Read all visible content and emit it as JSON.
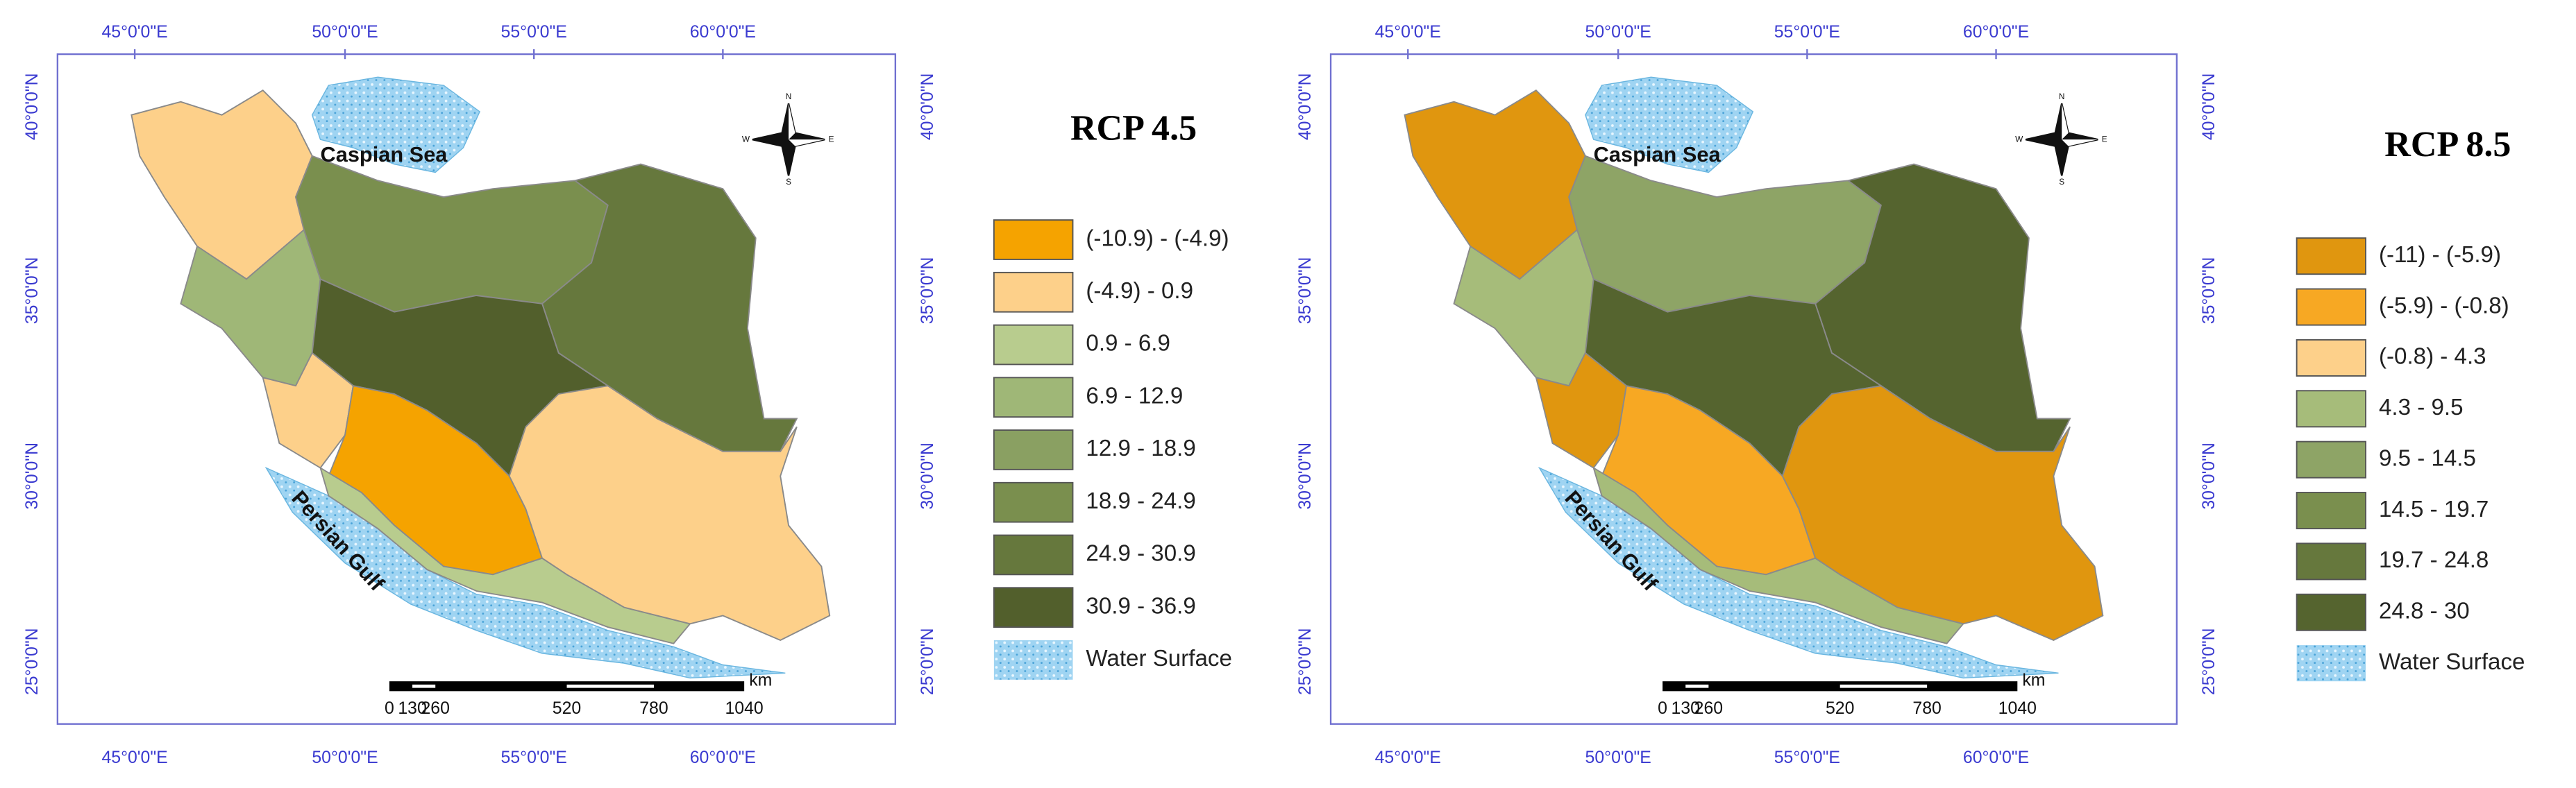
{
  "panels": [
    {
      "title": "RCP 4.5",
      "legend": [
        "(-10.9) - (-4.9)",
        "(-4.9) - 0.9",
        "0.9 - 6.9",
        "6.9 - 12.9",
        "12.9 - 18.9",
        "18.9 - 24.9",
        "24.9 - 30.9",
        "30.9 - 36.9",
        "Water Surface"
      ],
      "top_axis": [
        "45°0'0\"E",
        "50°0'0\"E",
        "55°0'0\"E",
        "60°0'0\"E"
      ],
      "bottom_axis": [
        "45°0'0\"E",
        "50°0'0\"E",
        "55°0'0\"E",
        "60°0'0\"E"
      ],
      "left_axis": [
        "40°0'0\"N",
        "35°0'0\"N",
        "30°0'0\"N",
        "25°0'0\"N"
      ],
      "right_axis": [
        "40°0'0\"N",
        "35°0'0\"N",
        "30°0'0\"N",
        "25°0'0\"N"
      ],
      "sea_labels": [
        "Caspian Sea",
        "Persian Gulf"
      ],
      "scale_bar": {
        "labels": [
          0,
          130,
          260,
          520,
          780,
          1040
        ],
        "unit": "km"
      },
      "compass": [
        "N",
        "E",
        "S",
        "W"
      ]
    },
    {
      "title": "RCP 8.5",
      "legend": [
        "(-11) - (-5.9)",
        "(-5.9) - (-0.8)",
        "(-0.8) - 4.3",
        "4.3 - 9.5",
        "9.5 - 14.5",
        "14.5 - 19.7",
        "19.7 - 24.8",
        "24.8 - 30",
        "Water Surface"
      ],
      "top_axis": [
        "45°0'0\"E",
        "50°0'0\"E",
        "55°0'0\"E",
        "60°0'0\"E"
      ],
      "bottom_axis": [
        "45°0'0\"E",
        "50°0'0\"E",
        "55°0'0\"E",
        "60°0'0\"E"
      ],
      "left_axis": [
        "40°0'0\"N",
        "35°0'0\"N",
        "30°0'0\"N",
        "25°0'0\"N"
      ],
      "right_axis": [
        "40°0'0\"N",
        "35°0'0\"N",
        "30°0'0\"N",
        "25°0'0\"N"
      ],
      "sea_labels": [
        "Caspian Sea",
        "Persian Gulf"
      ],
      "scale_bar": {
        "labels": [
          0,
          130,
          260,
          520,
          780,
          1040
        ],
        "unit": "km"
      },
      "compass": [
        "N",
        "E",
        "S",
        "W"
      ]
    }
  ]
}
